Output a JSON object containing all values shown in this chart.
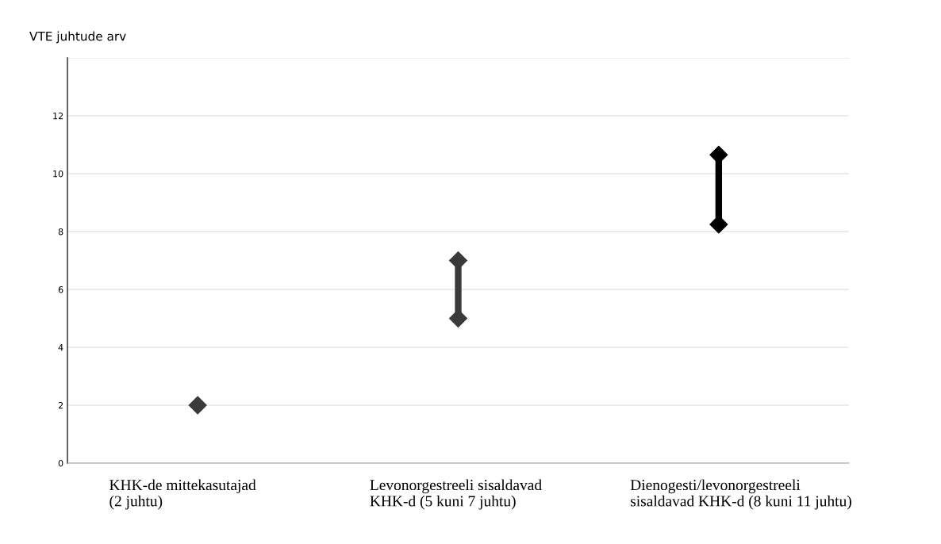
{
  "chart_data": {
    "type": "line",
    "ylabel": "VTE juhtude arv",
    "categories": [
      "KHK-de mittekasutajad\n(2 juhtu)",
      "Levonorgestreeli sisaldavad\nKHK-d (5 kuni 7 juhtu)",
      "Dienogesti/levonorgestreeli\nsisaldavad KHK-d (8 kuni 11 juhtu)"
    ],
    "series": [
      {
        "x": [
          "KHK-de mittekasutajad\n(2 juhtu)"
        ],
        "values": [
          2
        ],
        "color": "#3a3a3a"
      },
      {
        "x": [
          "Levonorgestreeli sisaldavad\nKHK-d (5 kuni 7 juhtu)",
          "Levonorgestreeli sisaldavad\nKHK-d (5 kuni 7 juhtu)"
        ],
        "values": [
          5,
          7
        ],
        "color": "#3a3a3a"
      },
      {
        "x": [
          "Dienogesti/levonorgestreeli\nsisaldavad KHK-d (8 kuni 11 juhtu)",
          "Dienogesti/levonorgestreeli\nsisaldavad KHK-d (8 kuni 11 juhtu)"
        ],
        "values": [
          8.25,
          10.65
        ],
        "color": "#000000"
      }
    ],
    "marker": "diamond",
    "ylim": [
      0,
      14
    ],
    "yticks": [
      0,
      2,
      4,
      6,
      8,
      10,
      12,
      {
        "value": 14,
        "label": null
      }
    ],
    "grid": "y"
  }
}
